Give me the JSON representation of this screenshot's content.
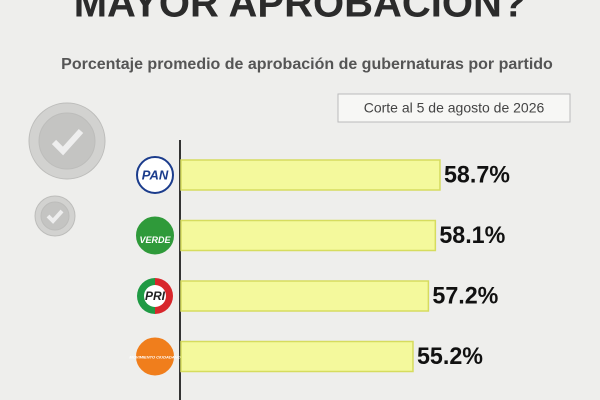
{
  "chart_data": {
    "type": "bar",
    "orientation": "horizontal",
    "title": "MAYOR APROBACIÓN?",
    "subtitle": "Porcentaje promedio de aprobación de gubernaturas por partido",
    "note": "Corte  al 5 de agosto de 2026",
    "categories": [
      "PAN",
      "VERDE",
      "PRI",
      "MOVIMIENTO CIUDADANO"
    ],
    "values": [
      58.7,
      58.1,
      57.2,
      55.2
    ],
    "value_labels": [
      "58.7%",
      "58.1%",
      "57.2%",
      "55.2%"
    ],
    "color": "#f4f99c",
    "xlim": [
      25,
      60
    ]
  }
}
